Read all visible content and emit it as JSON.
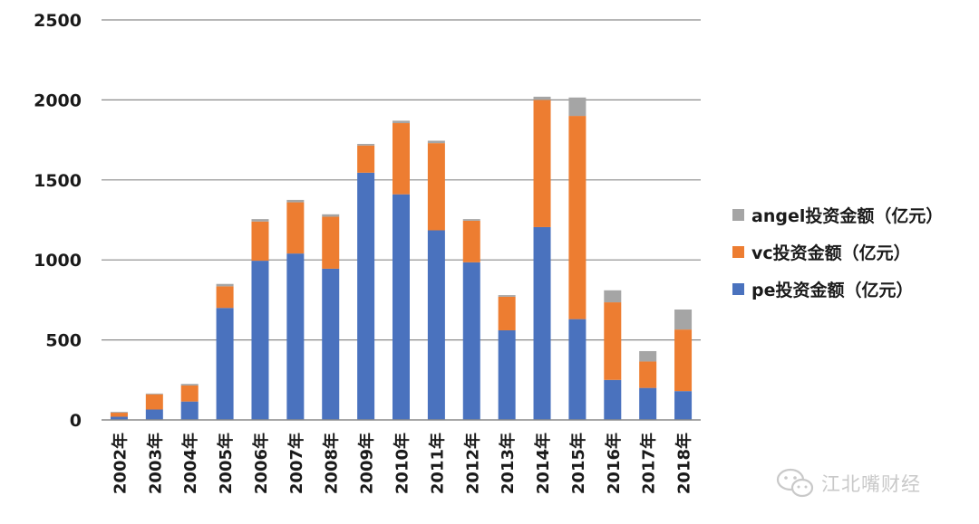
{
  "chart_data": {
    "type": "bar",
    "stacked": true,
    "categories": [
      "2002年",
      "2003年",
      "2004年",
      "2005年",
      "2006年",
      "2007年",
      "2008年",
      "2009年",
      "2010年",
      "2011年",
      "2012年",
      "2013年",
      "2014年",
      "2015年",
      "2016年",
      "2017年",
      "2018年"
    ],
    "series": [
      {
        "name": "pe投资金额（亿元）",
        "color": "#4a72be",
        "values": [
          20,
          65,
          115,
          700,
          995,
          1040,
          945,
          1545,
          1410,
          1185,
          985,
          560,
          1205,
          630,
          250,
          200,
          180
        ]
      },
      {
        "name": "vc投资金额（亿元）",
        "color": "#ed7d31",
        "values": [
          25,
          95,
          100,
          135,
          245,
          320,
          325,
          170,
          445,
          545,
          260,
          210,
          795,
          1270,
          485,
          165,
          385
        ]
      },
      {
        "name": "angel投资金额（亿元）",
        "color": "#a5a5a5",
        "values": [
          5,
          5,
          10,
          15,
          15,
          15,
          15,
          10,
          15,
          15,
          10,
          10,
          20,
          115,
          75,
          65,
          125
        ]
      }
    ],
    "yticks": [
      0,
      500,
      1000,
      1500,
      2000,
      2500
    ],
    "ylim": [
      0,
      2500
    ],
    "grid": true,
    "legend_position": "right",
    "legend_order": [
      2,
      1,
      0
    ]
  },
  "watermark": {
    "text": "江北嘴财经",
    "icon": "wechat-icon"
  }
}
